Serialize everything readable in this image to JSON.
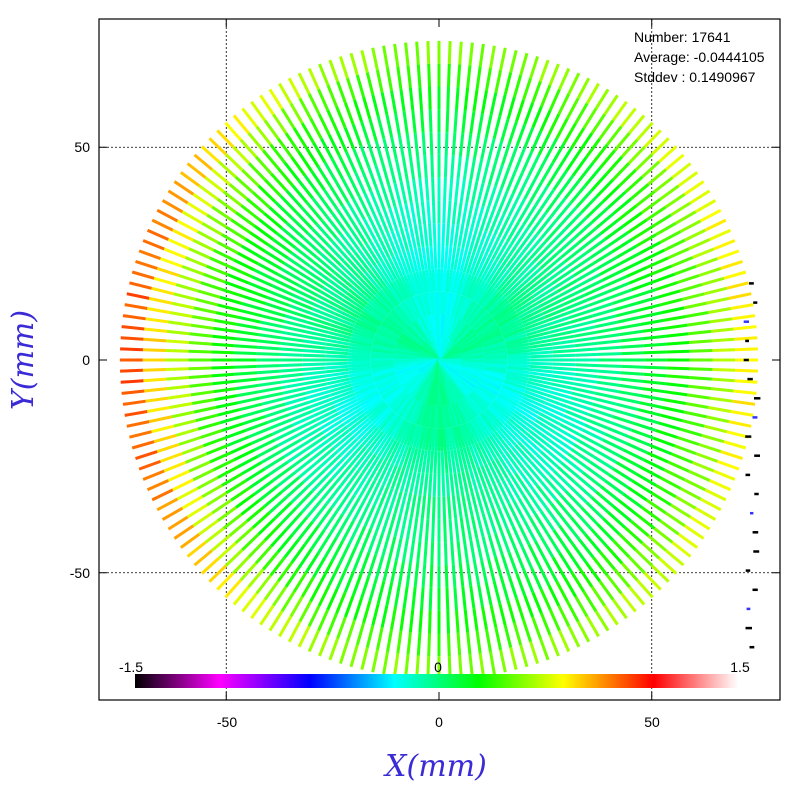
{
  "chart_data": {
    "type": "scatter",
    "description_markers": "radial spokes colored by value",
    "x_axis": {
      "label": "X(mm)",
      "range": [
        -80,
        80
      ],
      "ticks": [
        -50,
        0,
        50
      ],
      "tick_labels": [
        "-50",
        "0",
        "50"
      ]
    },
    "y_axis": {
      "label": "Y(mm)",
      "range": [
        -75,
        80
      ],
      "ticks": [
        -50,
        0,
        50
      ],
      "tick_labels": [
        "-50",
        "0",
        "50"
      ]
    },
    "grid": "dotted at ±50",
    "stats": {
      "number_text": "Number: 17641",
      "average_text": "Average: -0.0444105",
      "stddev_text": "Stddev : 0.1490967"
    },
    "colorbar": {
      "min": -1.5,
      "mid": 0,
      "max": 1.5,
      "min_label": "-1.5",
      "mid_label": "0",
      "max_label": "1.5",
      "stops": [
        "#000000",
        "#ff00ff",
        "#0000ff",
        "#00ffff",
        "#00ff00",
        "#ffff00",
        "#ff0000",
        "#ffffff"
      ]
    },
    "spokes": {
      "count": 180,
      "max_radius_mm": 75,
      "center_value": 0,
      "edge_values_approx": {
        "left": 1.2,
        "right": 0.9,
        "top": 0.6,
        "bottom": 0.6
      }
    }
  }
}
